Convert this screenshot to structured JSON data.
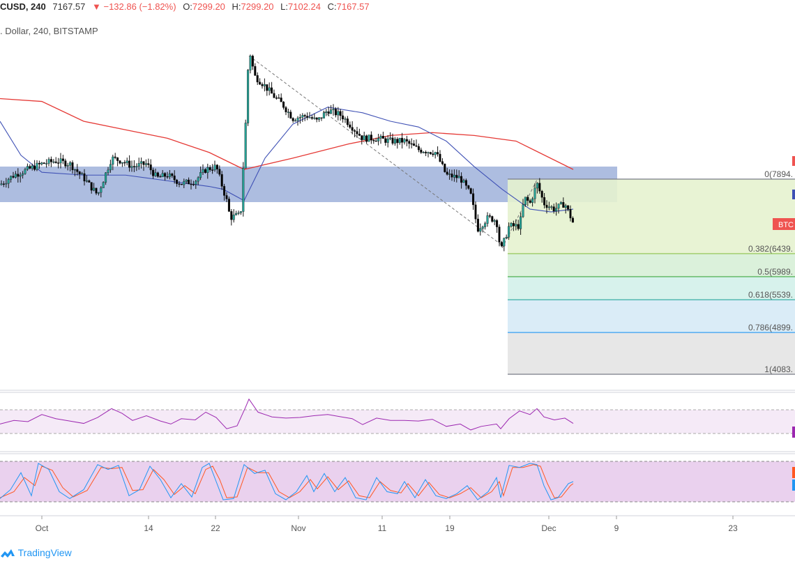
{
  "header": {
    "symbol": "CUSD, 240",
    "last": "7167.57",
    "change": "▼ −132.86 (−1.82%)",
    "o_label": "O:",
    "o_value": "7299.20",
    "h_label": "H:",
    "h_value": "7299.20",
    "l_label": "L:",
    "l_value": "7102.24",
    "c_label": "C:",
    "c_value": "7167.57",
    "subtitle": ". Dollar, 240, BITSTAMP"
  },
  "colors": {
    "down": "#ef5350",
    "up": "#26a69a",
    "candle": "#000000",
    "ma_short": "#3f51b5",
    "ma_long": "#e53935",
    "zone": "#9fb2da",
    "rsi": "#9c27b0",
    "stoch_k": "#2196f3",
    "stoch_d": "#ff5722",
    "logo": "#2196f3"
  },
  "brand": "TradingView",
  "chart_data": {
    "type": "candlestick",
    "x_ticks": [
      "Oct",
      "14",
      "22",
      "Nov",
      "11",
      "19",
      "Dec",
      "9",
      "23"
    ],
    "price_badge": "BTC",
    "fibonacci": [
      {
        "label": "0(7894.",
        "color": "#787b86"
      },
      {
        "label": "0.382(6439.",
        "color": "#8bc34a"
      },
      {
        "label": "0.5(5989.",
        "color": "#4caf50"
      },
      {
        "label": "0.618(5539.",
        "color": "#26a69a"
      },
      {
        "label": "0.786(4899.",
        "color": "#2196f3"
      },
      {
        "label": "1(4083.",
        "color": "#787b86"
      }
    ],
    "price_path_approx": [
      [
        0,
        7880
      ],
      [
        20,
        8050
      ],
      [
        40,
        8150
      ],
      [
        60,
        8250
      ],
      [
        80,
        8300
      ],
      [
        100,
        8250
      ],
      [
        120,
        8000
      ],
      [
        140,
        7700
      ],
      [
        160,
        8350
      ],
      [
        175,
        8300
      ],
      [
        190,
        8200
      ],
      [
        210,
        8250
      ],
      [
        225,
        8000
      ],
      [
        240,
        8050
      ],
      [
        260,
        7900
      ],
      [
        280,
        7950
      ],
      [
        295,
        8150
      ],
      [
        310,
        8200
      ],
      [
        325,
        7600
      ],
      [
        330,
        7300
      ],
      [
        345,
        7350
      ],
      [
        352,
        8900
      ],
      [
        357,
        10300
      ],
      [
        365,
        9800
      ],
      [
        378,
        9650
      ],
      [
        392,
        9450
      ],
      [
        405,
        9300
      ],
      [
        420,
        9050
      ],
      [
        440,
        9100
      ],
      [
        455,
        9000
      ],
      [
        470,
        9200
      ],
      [
        490,
        9100
      ],
      [
        505,
        8900
      ],
      [
        520,
        8700
      ],
      [
        540,
        8700
      ],
      [
        560,
        8650
      ],
      [
        580,
        8650
      ],
      [
        600,
        8500
      ],
      [
        625,
        8450
      ],
      [
        640,
        8050
      ],
      [
        660,
        8000
      ],
      [
        675,
        7700
      ],
      [
        685,
        7100
      ],
      [
        700,
        7300
      ],
      [
        712,
        7250
      ],
      [
        718,
        6700
      ],
      [
        730,
        7150
      ],
      [
        745,
        7150
      ],
      [
        752,
        7650
      ],
      [
        760,
        7550
      ],
      [
        770,
        7900
      ],
      [
        780,
        7550
      ],
      [
        795,
        7450
      ],
      [
        810,
        7550
      ],
      [
        822,
        7200
      ]
    ],
    "ma_long_approx": [
      [
        0,
        9400
      ],
      [
        60,
        9350
      ],
      [
        120,
        9000
      ],
      [
        180,
        8850
      ],
      [
        240,
        8700
      ],
      [
        300,
        8450
      ],
      [
        350,
        8150
      ],
      [
        420,
        8350
      ],
      [
        500,
        8600
      ],
      [
        560,
        8750
      ],
      [
        620,
        8800
      ],
      [
        680,
        8750
      ],
      [
        740,
        8650
      ],
      [
        822,
        8150
      ]
    ],
    "ma_short_approx": [
      [
        0,
        9000
      ],
      [
        30,
        8400
      ],
      [
        60,
        8100
      ],
      [
        120,
        8050
      ],
      [
        180,
        8050
      ],
      [
        240,
        7950
      ],
      [
        300,
        7850
      ],
      [
        320,
        7800
      ],
      [
        350,
        7600
      ],
      [
        380,
        8350
      ],
      [
        420,
        8950
      ],
      [
        470,
        9250
      ],
      [
        520,
        9150
      ],
      [
        560,
        9000
      ],
      [
        600,
        8900
      ],
      [
        640,
        8650
      ],
      [
        680,
        8200
      ],
      [
        720,
        7800
      ],
      [
        760,
        7450
      ],
      [
        790,
        7400
      ],
      [
        822,
        7450
      ]
    ],
    "rsi_approx": [
      [
        0,
        46
      ],
      [
        20,
        52
      ],
      [
        40,
        50
      ],
      [
        60,
        62
      ],
      [
        80,
        55
      ],
      [
        100,
        51
      ],
      [
        120,
        47
      ],
      [
        140,
        57
      ],
      [
        160,
        72
      ],
      [
        175,
        64
      ],
      [
        190,
        52
      ],
      [
        210,
        60
      ],
      [
        230,
        51
      ],
      [
        245,
        46
      ],
      [
        260,
        55
      ],
      [
        280,
        53
      ],
      [
        295,
        66
      ],
      [
        310,
        57
      ],
      [
        325,
        38
      ],
      [
        340,
        43
      ],
      [
        352,
        74
      ],
      [
        357,
        88
      ],
      [
        370,
        66
      ],
      [
        390,
        58
      ],
      [
        410,
        56
      ],
      [
        430,
        57
      ],
      [
        450,
        60
      ],
      [
        470,
        62
      ],
      [
        490,
        58
      ],
      [
        505,
        55
      ],
      [
        520,
        45
      ],
      [
        540,
        56
      ],
      [
        560,
        52
      ],
      [
        580,
        52
      ],
      [
        600,
        51
      ],
      [
        620,
        54
      ],
      [
        640,
        42
      ],
      [
        660,
        46
      ],
      [
        675,
        36
      ],
      [
        690,
        42
      ],
      [
        712,
        46
      ],
      [
        718,
        38
      ],
      [
        730,
        55
      ],
      [
        745,
        68
      ],
      [
        760,
        62
      ],
      [
        770,
        72
      ],
      [
        780,
        58
      ],
      [
        795,
        53
      ],
      [
        810,
        56
      ],
      [
        822,
        47
      ]
    ],
    "stoch_k_approx": [
      [
        0,
        8
      ],
      [
        15,
        30
      ],
      [
        30,
        72
      ],
      [
        45,
        15
      ],
      [
        55,
        95
      ],
      [
        70,
        80
      ],
      [
        85,
        25
      ],
      [
        100,
        8
      ],
      [
        120,
        30
      ],
      [
        140,
        92
      ],
      [
        155,
        80
      ],
      [
        170,
        90
      ],
      [
        185,
        15
      ],
      [
        200,
        30
      ],
      [
        215,
        88
      ],
      [
        230,
        55
      ],
      [
        245,
        10
      ],
      [
        260,
        45
      ],
      [
        275,
        12
      ],
      [
        290,
        85
      ],
      [
        300,
        95
      ],
      [
        310,
        50
      ],
      [
        320,
        5
      ],
      [
        335,
        8
      ],
      [
        350,
        92
      ],
      [
        365,
        70
      ],
      [
        380,
        78
      ],
      [
        395,
        20
      ],
      [
        410,
        5
      ],
      [
        425,
        25
      ],
      [
        440,
        65
      ],
      [
        450,
        25
      ],
      [
        465,
        70
      ],
      [
        480,
        25
      ],
      [
        495,
        60
      ],
      [
        510,
        10
      ],
      [
        525,
        5
      ],
      [
        540,
        60
      ],
      [
        555,
        25
      ],
      [
        570,
        20
      ],
      [
        580,
        50
      ],
      [
        595,
        10
      ],
      [
        610,
        55
      ],
      [
        625,
        15
      ],
      [
        640,
        8
      ],
      [
        655,
        20
      ],
      [
        670,
        40
      ],
      [
        685,
        5
      ],
      [
        700,
        25
      ],
      [
        712,
        60
      ],
      [
        718,
        10
      ],
      [
        730,
        90
      ],
      [
        745,
        85
      ],
      [
        760,
        95
      ],
      [
        770,
        92
      ],
      [
        780,
        40
      ],
      [
        790,
        5
      ],
      [
        800,
        10
      ],
      [
        815,
        45
      ],
      [
        822,
        50
      ]
    ],
    "stoch_d_approx": [
      [
        0,
        10
      ],
      [
        20,
        25
      ],
      [
        35,
        60
      ],
      [
        50,
        40
      ],
      [
        60,
        88
      ],
      [
        75,
        78
      ],
      [
        90,
        35
      ],
      [
        105,
        12
      ],
      [
        125,
        28
      ],
      [
        145,
        85
      ],
      [
        160,
        82
      ],
      [
        175,
        85
      ],
      [
        190,
        28
      ],
      [
        205,
        30
      ],
      [
        220,
        80
      ],
      [
        235,
        55
      ],
      [
        250,
        18
      ],
      [
        265,
        40
      ],
      [
        280,
        20
      ],
      [
        295,
        80
      ],
      [
        305,
        88
      ],
      [
        315,
        55
      ],
      [
        325,
        10
      ],
      [
        340,
        12
      ],
      [
        355,
        85
      ],
      [
        370,
        72
      ],
      [
        385,
        72
      ],
      [
        400,
        25
      ],
      [
        415,
        10
      ],
      [
        430,
        25
      ],
      [
        445,
        55
      ],
      [
        455,
        32
      ],
      [
        470,
        62
      ],
      [
        485,
        30
      ],
      [
        500,
        52
      ],
      [
        515,
        15
      ],
      [
        530,
        10
      ],
      [
        545,
        50
      ],
      [
        560,
        28
      ],
      [
        575,
        22
      ],
      [
        585,
        45
      ],
      [
        600,
        15
      ],
      [
        615,
        48
      ],
      [
        630,
        18
      ],
      [
        645,
        10
      ],
      [
        660,
        20
      ],
      [
        675,
        35
      ],
      [
        690,
        10
      ],
      [
        705,
        25
      ],
      [
        716,
        50
      ],
      [
        722,
        15
      ],
      [
        735,
        85
      ],
      [
        750,
        85
      ],
      [
        765,
        92
      ],
      [
        775,
        88
      ],
      [
        785,
        45
      ],
      [
        795,
        10
      ],
      [
        805,
        12
      ],
      [
        818,
        40
      ],
      [
        822,
        45
      ]
    ]
  }
}
